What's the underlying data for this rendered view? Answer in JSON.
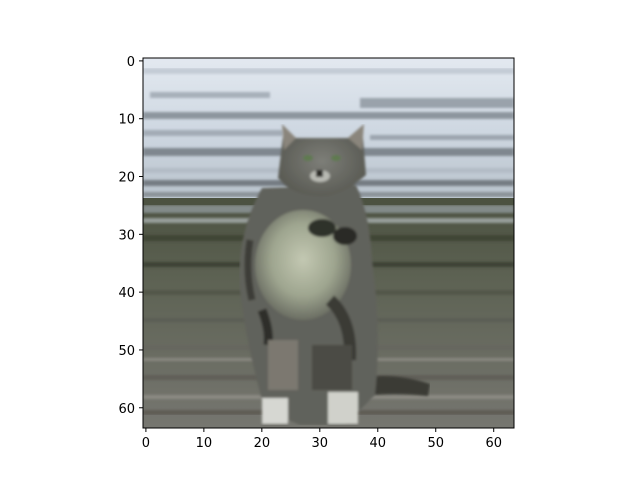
{
  "figure": {
    "background": "#ffffff"
  },
  "image": {
    "subject": "cat",
    "pixels_wide": 64,
    "pixels_high": 64,
    "palette": {
      "sky_light": "#dfe6ee",
      "sky_blue": "#c8d3df",
      "cloud_band": "#8f98a0",
      "ground_dark": "#4e5443",
      "ground_mid": "#6a6f60",
      "deck_plank": "#7c7b72",
      "deck_plank_dark": "#5e5c55",
      "cat_fur_gray": "#6d6e69",
      "cat_fur_dark": "#3a3a36",
      "cat_chest_light": "#b4bba6",
      "cat_white": "#d9dad6"
    }
  },
  "axes": {
    "x_ticks": [
      "0",
      "10",
      "20",
      "30",
      "40",
      "50",
      "60"
    ],
    "y_ticks": [
      "0",
      "10",
      "20",
      "30",
      "40",
      "50",
      "60"
    ],
    "x_tick_values": [
      0,
      10,
      20,
      30,
      40,
      50,
      60
    ],
    "y_tick_values": [
      0,
      10,
      20,
      30,
      40,
      50,
      60
    ],
    "x_range": [
      -0.5,
      63.5
    ],
    "y_range": [
      -0.5,
      63.5
    ],
    "frame_color": "#000000"
  }
}
